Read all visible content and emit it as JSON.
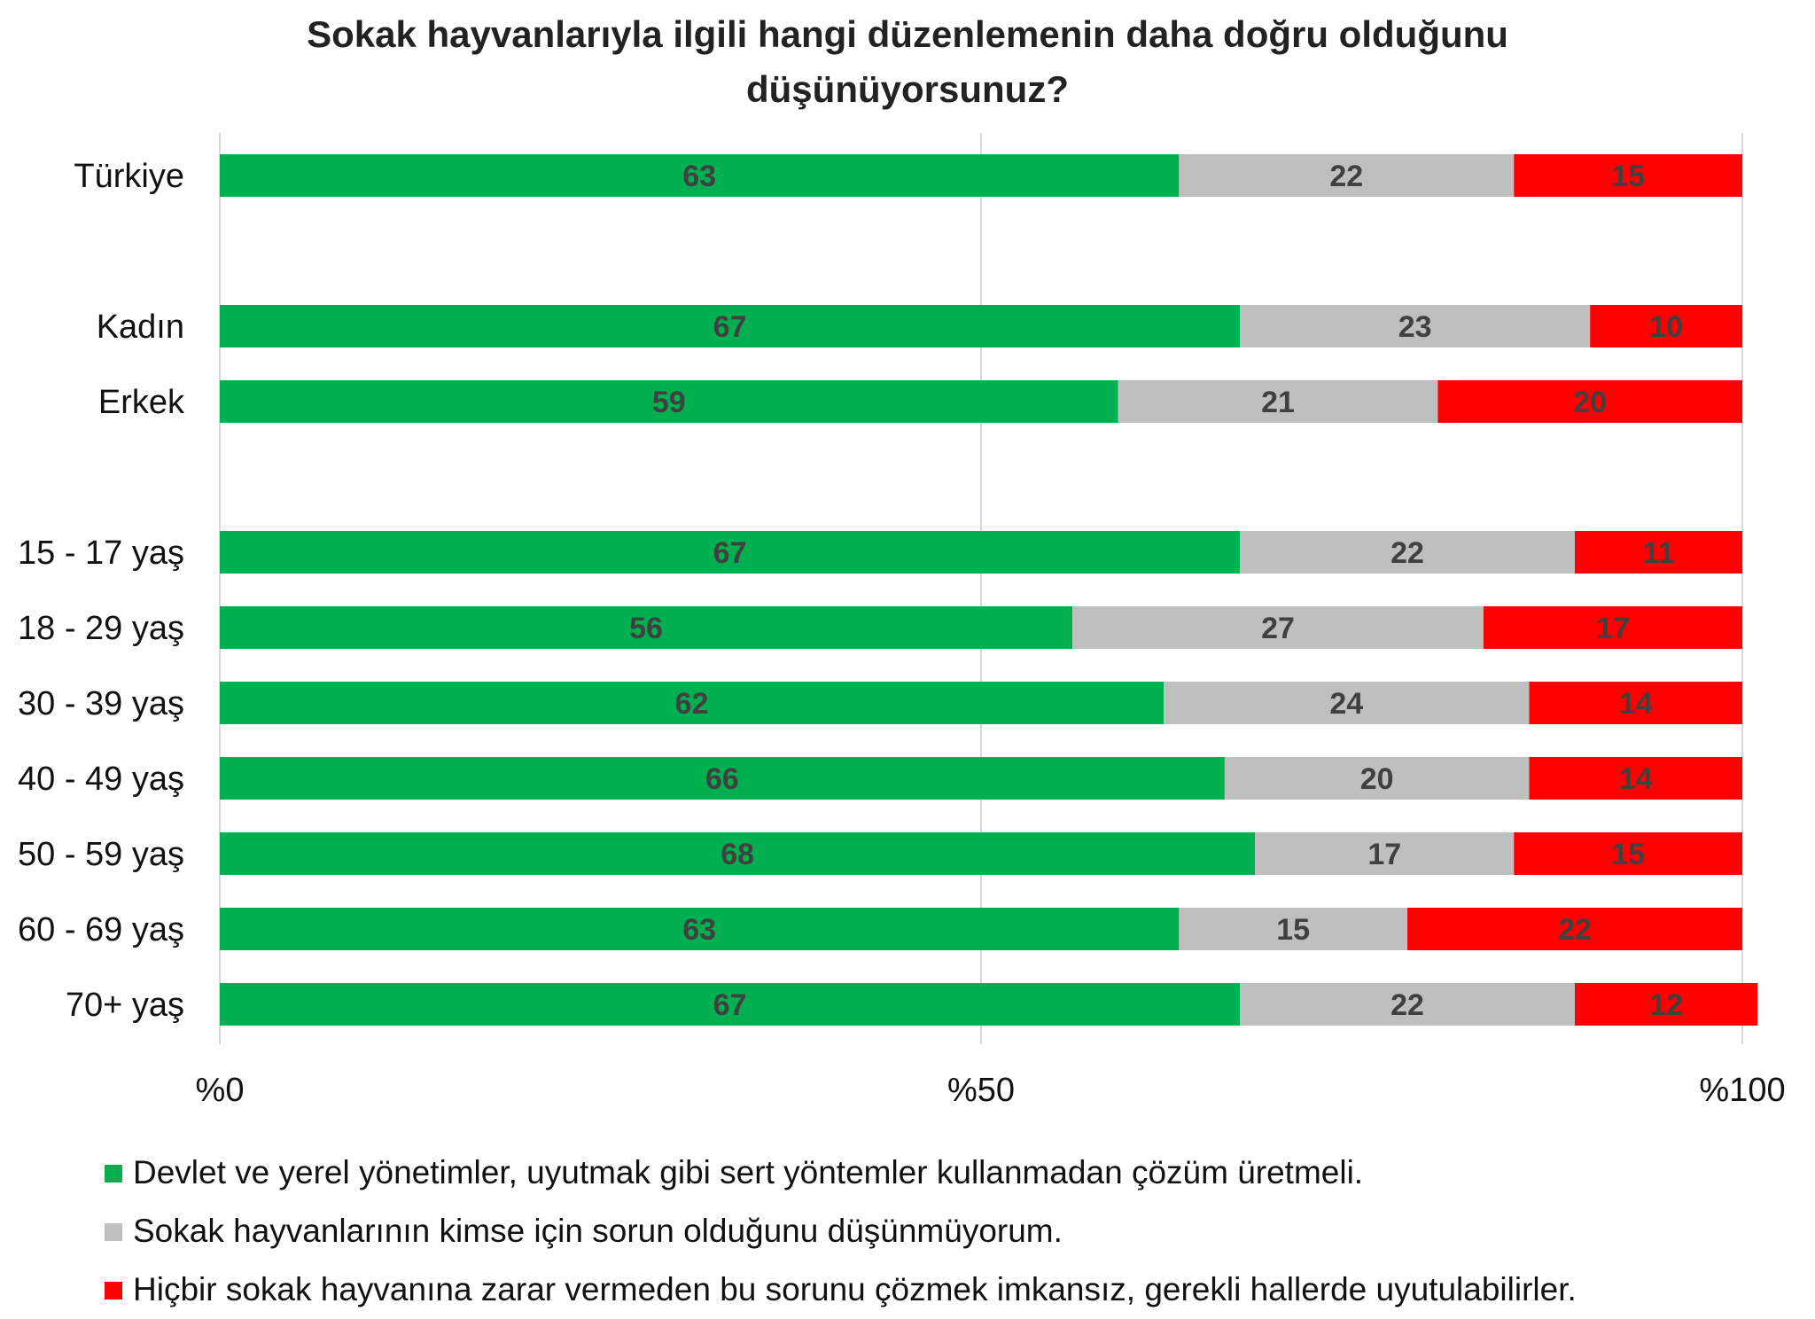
{
  "chart_data": {
    "type": "bar",
    "orientation": "horizontal",
    "stacked": true,
    "title": "Sokak hayvanlarıyla ilgili hangi düzenlemenin daha doğru olduğunu düşünüyorsunuz?",
    "title_lines": [
      "Sokak hayvanlarıyla ilgili hangi düzenlemenin daha doğru olduğunu",
      "düşünüyorsunuz?"
    ],
    "categories": [
      "Türkiye",
      "Kadın",
      "Erkek",
      "15 - 17 yaş",
      "18 - 29 yaş",
      "30 - 39 yaş",
      "40 - 49 yaş",
      "50 - 59 yaş",
      "60 - 69 yaş",
      "70+ yaş"
    ],
    "series": [
      {
        "name": "Devlet ve yerel yönetimler, uyutmak gibi sert yöntemler kullanmadan çözüm üretmeli.",
        "color": "#00B050",
        "values": [
          63,
          67,
          59,
          67,
          56,
          62,
          66,
          68,
          63,
          67
        ]
      },
      {
        "name": "Sokak hayvanlarının kimse için sorun olduğunu düşünmüyorum.",
        "color": "#BFBFBF",
        "values": [
          22,
          23,
          21,
          22,
          27,
          24,
          20,
          17,
          15,
          22
        ]
      },
      {
        "name": "Hiçbir sokak hayvanına zarar vermeden bu sorunu çözmek imkansız, gerekli hallerde uyutulabilirler.",
        "color": "#FF0000",
        "values": [
          15,
          10,
          20,
          11,
          17,
          14,
          14,
          15,
          22,
          12
        ]
      }
    ],
    "xlim": [
      0,
      100
    ],
    "xticks": [
      0,
      50,
      100
    ],
    "xtick_labels": [
      "%0",
      "%50",
      "%100"
    ],
    "grid": "vertical gridlines at ticks",
    "legend_position": "bottom"
  }
}
